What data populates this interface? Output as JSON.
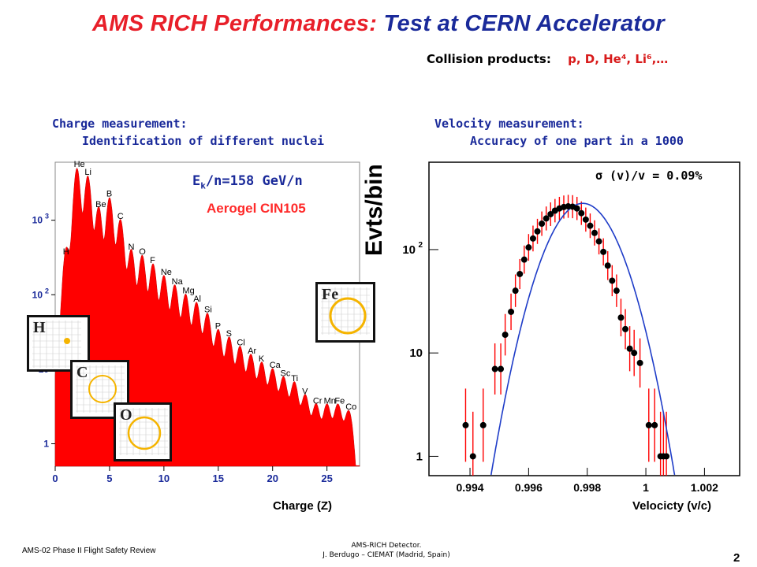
{
  "title": {
    "part1": "AMS RICH Performances:",
    "part2": "Test at CERN Accelerator"
  },
  "collision": {
    "label": "Collision products:",
    "products": "p, D, He⁴, Li⁶,…"
  },
  "left": {
    "heading1": "Charge measurement:",
    "heading2": "Identification of  different nuclei",
    "energy_label": "E",
    "energy_sub": "k",
    "energy_rest": "/n=158 GeV/n",
    "aerogel_label": "Aerogel CIN105",
    "xlabel": "Charge (Z)",
    "insets": [
      {
        "symbol": "H"
      },
      {
        "symbol": "C"
      },
      {
        "symbol": "O"
      },
      {
        "symbol": "Fe"
      }
    ]
  },
  "right": {
    "heading1": "Velocity measurement:",
    "heading2": "Accuracy of one part in a 1000",
    "sigma_label": "σ (v)/v = 0.09%",
    "ylabel": "Evts/bin",
    "xlabel": "Velocicty (v/c)"
  },
  "footer": {
    "left": "AMS-02 Phase II Flight Safety Review",
    "mid1": "AMS-RICH Detector.",
    "mid2": "J. Berdugo – CIEMAT (Madrid, Spain)",
    "page": "2"
  },
  "colors": {
    "red": "#ff0000",
    "blue": "#1e3cc8",
    "title_red": "#e8202a",
    "title_blue": "#1a2a9a"
  },
  "chart_data": [
    {
      "type": "bar",
      "title": "",
      "xlabel": "Charge (Z)",
      "ylabel": "",
      "xlim": [
        0,
        28
      ],
      "ylim": [
        0.5,
        6000
      ],
      "yscale": "log",
      "x_ticks": [
        0,
        5,
        10,
        15,
        20,
        25
      ],
      "y_ticks": [
        {
          "v": 1,
          "label": "1"
        },
        {
          "v": 10,
          "label": "10"
        },
        {
          "v": 100,
          "label": "10 2"
        },
        {
          "v": 1000,
          "label": "10 3"
        }
      ],
      "peaks": [
        {
          "z": 1,
          "count": 300,
          "label": "H"
        },
        {
          "z": 2,
          "count": 4500,
          "label": "He"
        },
        {
          "z": 3,
          "count": 3500,
          "label": "Li"
        },
        {
          "z": 4,
          "count": 1300,
          "label": "Be"
        },
        {
          "z": 5,
          "count": 1800,
          "label": "B"
        },
        {
          "z": 6,
          "count": 900,
          "label": "C"
        },
        {
          "z": 7,
          "count": 350,
          "label": "N"
        },
        {
          "z": 8,
          "count": 300,
          "label": "O"
        },
        {
          "z": 9,
          "count": 230,
          "label": "F"
        },
        {
          "z": 10,
          "count": 160,
          "label": "Ne"
        },
        {
          "z": 11,
          "count": 120,
          "label": "Na"
        },
        {
          "z": 12,
          "count": 90,
          "label": "Mg"
        },
        {
          "z": 13,
          "count": 70,
          "label": "Al"
        },
        {
          "z": 14,
          "count": 50,
          "label": "Si"
        },
        {
          "z": 15,
          "count": 30,
          "label": "P"
        },
        {
          "z": 16,
          "count": 24,
          "label": "S"
        },
        {
          "z": 17,
          "count": 18,
          "label": "Cl"
        },
        {
          "z": 18,
          "count": 14,
          "label": "Ar"
        },
        {
          "z": 19,
          "count": 11,
          "label": "K"
        },
        {
          "z": 20,
          "count": 9,
          "label": "Ca"
        },
        {
          "z": 21,
          "count": 7,
          "label": "Sc"
        },
        {
          "z": 22,
          "count": 6,
          "label": "Ti"
        },
        {
          "z": 23,
          "count": 4,
          "label": "V"
        },
        {
          "z": 24,
          "count": 3,
          "label": "Cr"
        },
        {
          "z": 25,
          "count": 3,
          "label": "Mn"
        },
        {
          "z": 26,
          "count": 3,
          "label": "Fe"
        },
        {
          "z": 27,
          "count": 2.5,
          "label": "Co"
        }
      ]
    },
    {
      "type": "scatter",
      "title": "",
      "xlabel": "Velocicty (v/c)",
      "ylabel": "Evts/bin",
      "xlim": [
        0.9926,
        1.0032
      ],
      "ylim": [
        0.65,
        700
      ],
      "yscale": "log",
      "x_ticks": [
        0.994,
        0.996,
        0.998,
        1,
        1.002
      ],
      "y_ticks": [
        {
          "v": 1,
          "label": "1"
        },
        {
          "v": 10,
          "label": "10"
        },
        {
          "v": 100,
          "label": "10 2"
        }
      ],
      "fit": {
        "type": "gaussian",
        "mean": 0.99785,
        "sigma": 0.0009,
        "amplitude": 280
      },
      "points": [
        {
          "x": 0.99385,
          "y": 2
        },
        {
          "x": 0.9941,
          "y": 1
        },
        {
          "x": 0.99445,
          "y": 2
        },
        {
          "x": 0.99485,
          "y": 7
        },
        {
          "x": 0.99505,
          "y": 7
        },
        {
          "x": 0.9952,
          "y": 15
        },
        {
          "x": 0.9954,
          "y": 25
        },
        {
          "x": 0.99555,
          "y": 40
        },
        {
          "x": 0.9957,
          "y": 58
        },
        {
          "x": 0.99585,
          "y": 80
        },
        {
          "x": 0.996,
          "y": 105
        },
        {
          "x": 0.99615,
          "y": 128
        },
        {
          "x": 0.9963,
          "y": 150
        },
        {
          "x": 0.99645,
          "y": 178
        },
        {
          "x": 0.9966,
          "y": 200
        },
        {
          "x": 0.99675,
          "y": 220
        },
        {
          "x": 0.9969,
          "y": 238
        },
        {
          "x": 0.99705,
          "y": 250
        },
        {
          "x": 0.9972,
          "y": 258
        },
        {
          "x": 0.99735,
          "y": 262
        },
        {
          "x": 0.9975,
          "y": 260
        },
        {
          "x": 0.99765,
          "y": 250
        },
        {
          "x": 0.9978,
          "y": 225
        },
        {
          "x": 0.99795,
          "y": 195
        },
        {
          "x": 0.9981,
          "y": 170
        },
        {
          "x": 0.99825,
          "y": 145
        },
        {
          "x": 0.9984,
          "y": 120
        },
        {
          "x": 0.99855,
          "y": 95
        },
        {
          "x": 0.9987,
          "y": 70
        },
        {
          "x": 0.99885,
          "y": 50
        },
        {
          "x": 0.999,
          "y": 40
        },
        {
          "x": 0.99915,
          "y": 22
        },
        {
          "x": 0.9993,
          "y": 17
        },
        {
          "x": 0.99945,
          "y": 11
        },
        {
          "x": 0.9996,
          "y": 10
        },
        {
          "x": 0.9998,
          "y": 8
        },
        {
          "x": 1.0001,
          "y": 2
        },
        {
          "x": 1.0003,
          "y": 2
        },
        {
          "x": 1.0005,
          "y": 1
        },
        {
          "x": 1.0006,
          "y": 1
        },
        {
          "x": 1.0007,
          "y": 1
        }
      ]
    }
  ]
}
